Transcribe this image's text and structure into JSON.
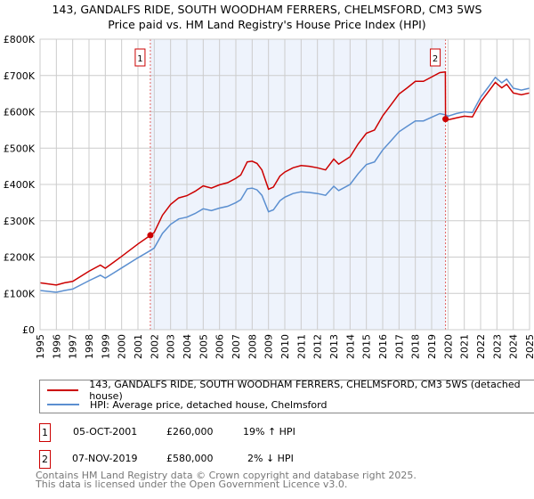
{
  "chart_data": {
    "type": "line",
    "title": "143, GANDALFS RIDE, SOUTH WOODHAM FERRERS, CHELMSFORD, CM3 5WS",
    "subtitle": "Price paid vs. HM Land Registry's House Price Index (HPI)",
    "xlim": [
      1995,
      2025
    ],
    "ylim": [
      0,
      800000
    ],
    "grid": true,
    "x_ticks": [
      "1995",
      "1996",
      "1997",
      "1998",
      "1999",
      "2000",
      "2001",
      "2002",
      "2003",
      "2004",
      "2005",
      "2006",
      "2007",
      "2008",
      "2009",
      "2010",
      "2011",
      "2012",
      "2013",
      "2014",
      "2015",
      "2016",
      "2017",
      "2018",
      "2019",
      "2020",
      "2021",
      "2022",
      "2023",
      "2024",
      "2025"
    ],
    "y_ticks": [
      {
        "v": 0,
        "label": "£0"
      },
      {
        "v": 100000,
        "label": "£100K"
      },
      {
        "v": 200000,
        "label": "£200K"
      },
      {
        "v": 300000,
        "label": "£300K"
      },
      {
        "v": 400000,
        "label": "£400K"
      },
      {
        "v": 500000,
        "label": "£500K"
      },
      {
        "v": 600000,
        "label": "£600K"
      },
      {
        "v": 700000,
        "label": "£700K"
      },
      {
        "v": 800000,
        "label": "£800K"
      }
    ],
    "series": [
      {
        "name": "143, GANDALFS RIDE, SOUTH WOODHAM FERRERS, CHELMSFORD, CM3 5WS (detached house)",
        "color": "#cc0000",
        "x": [
          1995,
          1996,
          1996.5,
          1997,
          1998,
          1998.7,
          1999,
          2000,
          2001,
          2001.76,
          2002,
          2002.5,
          2003,
          2003.5,
          2004,
          2004.5,
          2005,
          2005.5,
          2006,
          2006.5,
          2007,
          2007.3,
          2007.7,
          2008,
          2008.3,
          2008.6,
          2009,
          2009.3,
          2009.7,
          2010,
          2010.5,
          2011,
          2011.5,
          2012,
          2012.5,
          2013,
          2013.3,
          2014,
          2014.5,
          2015,
          2015.5,
          2016,
          2016.5,
          2017,
          2017.5,
          2018,
          2018.5,
          2019,
          2019.5,
          2019.84,
          2019.85,
          2020,
          2020.5,
          2021,
          2021.5,
          2022,
          2022.5,
          2022.9,
          2023.3,
          2023.6,
          2024,
          2024.5,
          2025
        ],
        "y": [
          129000,
          123000,
          129000,
          133000,
          161000,
          178000,
          169000,
          202000,
          236000,
          260000,
          268000,
          315000,
          345000,
          363000,
          369000,
          381000,
          396000,
          390000,
          399000,
          405000,
          417000,
          426000,
          462000,
          464000,
          458000,
          440000,
          387000,
          393000,
          423000,
          434000,
          446000,
          452000,
          450000,
          446000,
          440000,
          470000,
          456000,
          476000,
          512000,
          541000,
          550000,
          589000,
          619000,
          649000,
          666000,
          684000,
          684000,
          696000,
          708000,
          710000,
          580000,
          578000,
          583000,
          588000,
          586000,
          627000,
          657000,
          681000,
          666000,
          676000,
          652000,
          647000,
          652000
        ]
      },
      {
        "name": "HPI: Average price, detached house, Chelmsford",
        "color": "#5b8fd0",
        "x": [
          1995,
          1996,
          1996.5,
          1997,
          1998,
          1998.7,
          1999,
          2000,
          2001,
          2001.76,
          2002,
          2002.5,
          2003,
          2003.5,
          2004,
          2004.5,
          2005,
          2005.5,
          2006,
          2006.5,
          2007,
          2007.3,
          2007.7,
          2008,
          2008.3,
          2008.6,
          2009,
          2009.3,
          2009.7,
          2010,
          2010.5,
          2011,
          2011.5,
          2012,
          2012.5,
          2013,
          2013.3,
          2014,
          2014.5,
          2015,
          2015.5,
          2016,
          2016.5,
          2017,
          2017.5,
          2018,
          2018.5,
          2019,
          2019.5,
          2019.84,
          2019.85,
          2020,
          2020.5,
          2021,
          2021.5,
          2022,
          2022.5,
          2022.9,
          2023.3,
          2023.6,
          2024,
          2024.5,
          2025
        ],
        "y": [
          108000,
          103000,
          108000,
          112000,
          135000,
          150000,
          142000,
          170000,
          198000,
          218000,
          225000,
          265000,
          290000,
          305000,
          310000,
          320000,
          333000,
          328000,
          335000,
          340000,
          350000,
          358000,
          388000,
          390000,
          385000,
          370000,
          325000,
          330000,
          355000,
          365000,
          375000,
          380000,
          378000,
          375000,
          370000,
          395000,
          383000,
          400000,
          430000,
          455000,
          462000,
          495000,
          520000,
          545000,
          560000,
          575000,
          575000,
          585000,
          595000,
          592000,
          592000,
          588000,
          595000,
          600000,
          598000,
          640000,
          670000,
          695000,
          680000,
          690000,
          665000,
          660000,
          665000
        ]
      }
    ],
    "sales": [
      {
        "id": "1",
        "x": 2001.76,
        "date": "05-OCT-2001",
        "price": 260000,
        "price_label": "£260,000",
        "hpi": "19% ↑ HPI"
      },
      {
        "id": "2",
        "x": 2019.85,
        "date": "07-NOV-2019",
        "price": 580000,
        "price_label": "£580,000",
        "hpi": "2% ↓ HPI"
      }
    ],
    "shaded_range": [
      2001.76,
      2019.85
    ],
    "legend_position": "below"
  },
  "footer": {
    "line1": "Contains HM Land Registry data © Crown copyright and database right 2025.",
    "line2": "This data is licensed under the Open Government Licence v3.0."
  }
}
